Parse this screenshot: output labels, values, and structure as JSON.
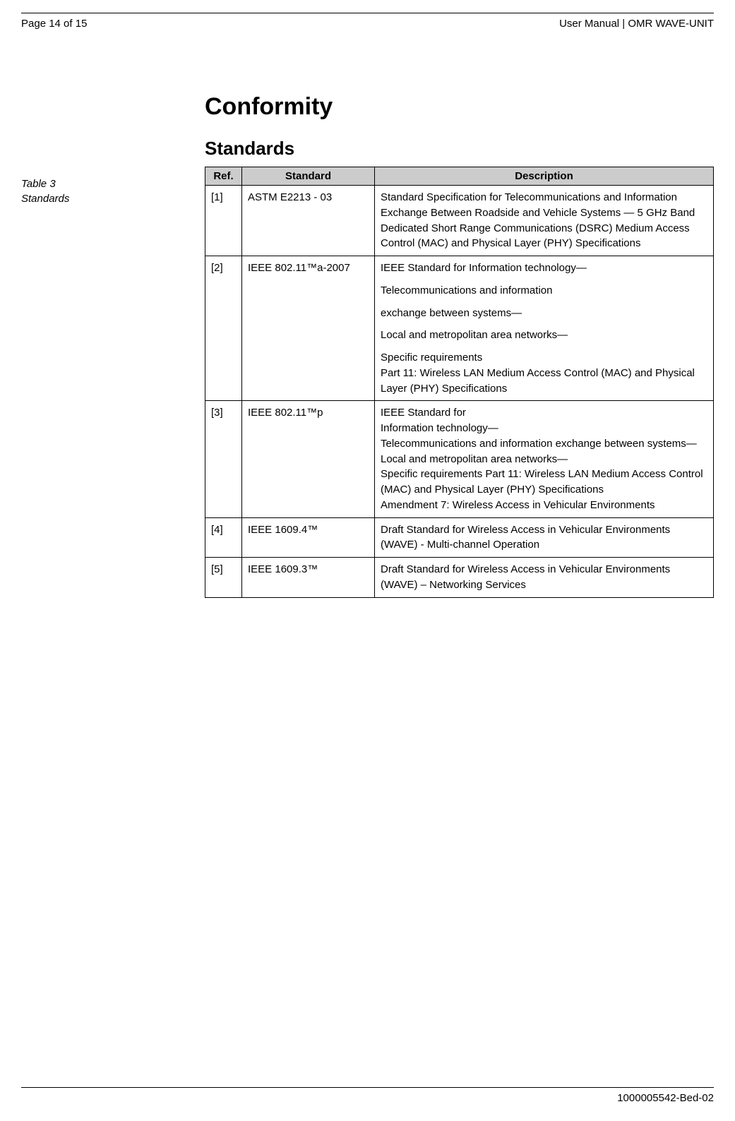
{
  "header": {
    "page_indicator": "Page 14 of 15",
    "doc_title": "User Manual | OMR WAVE-UNIT"
  },
  "margin": {
    "table_label_line1": "Table 3",
    "table_label_line2": "Standards"
  },
  "main": {
    "heading1": "Conformity",
    "heading2": "Standards",
    "table": {
      "columns": {
        "ref": "Ref.",
        "standard": "Standard",
        "description": "Description"
      },
      "header_bg": "#cccccc",
      "border_color": "#000000",
      "rows": [
        {
          "ref": "[1]",
          "standard": "ASTM E2213 - 03",
          "description": [
            "Standard Specification for Telecommunications and Information Exchange Between Roadside and Vehicle Systems — 5 GHz Band Dedicated Short Range Communications (DSRC) Medium Access Control (MAC) and Physical Layer (PHY) Specifications"
          ]
        },
        {
          "ref": "[2]",
          "standard": "IEEE 802.11™a-2007",
          "description": [
            "IEEE Standard for Information technology—",
            "Telecommunications and information",
            "exchange between systems—",
            "Local and metropolitan area networks—",
            "Specific requirements\nPart 11: Wireless LAN Medium Access Control (MAC) and Physical Layer (PHY) Specifications"
          ]
        },
        {
          "ref": "[3]",
          "standard": "IEEE 802.11™p",
          "description": [
            "IEEE Standard for\nInformation technology—\nTelecommunications and information exchange between systems—\nLocal and metropolitan area networks—\nSpecific requirements Part 11: Wireless LAN Medium Access Control (MAC) and Physical Layer (PHY) Specifications\nAmendment 7: Wireless Access in Vehicular Environments"
          ]
        },
        {
          "ref": "[4]",
          "standard": "IEEE 1609.4™",
          "description": [
            "Draft Standard for Wireless Access in Vehicular Environments (WAVE) - Multi-channel Operation"
          ]
        },
        {
          "ref": "[5]",
          "standard": "IEEE 1609.3™",
          "description": [
            "Draft Standard for Wireless Access in Vehicular Environments (WAVE) – Networking Services"
          ]
        }
      ]
    }
  },
  "footer": {
    "doc_number": "1000005542-Bed-02"
  }
}
